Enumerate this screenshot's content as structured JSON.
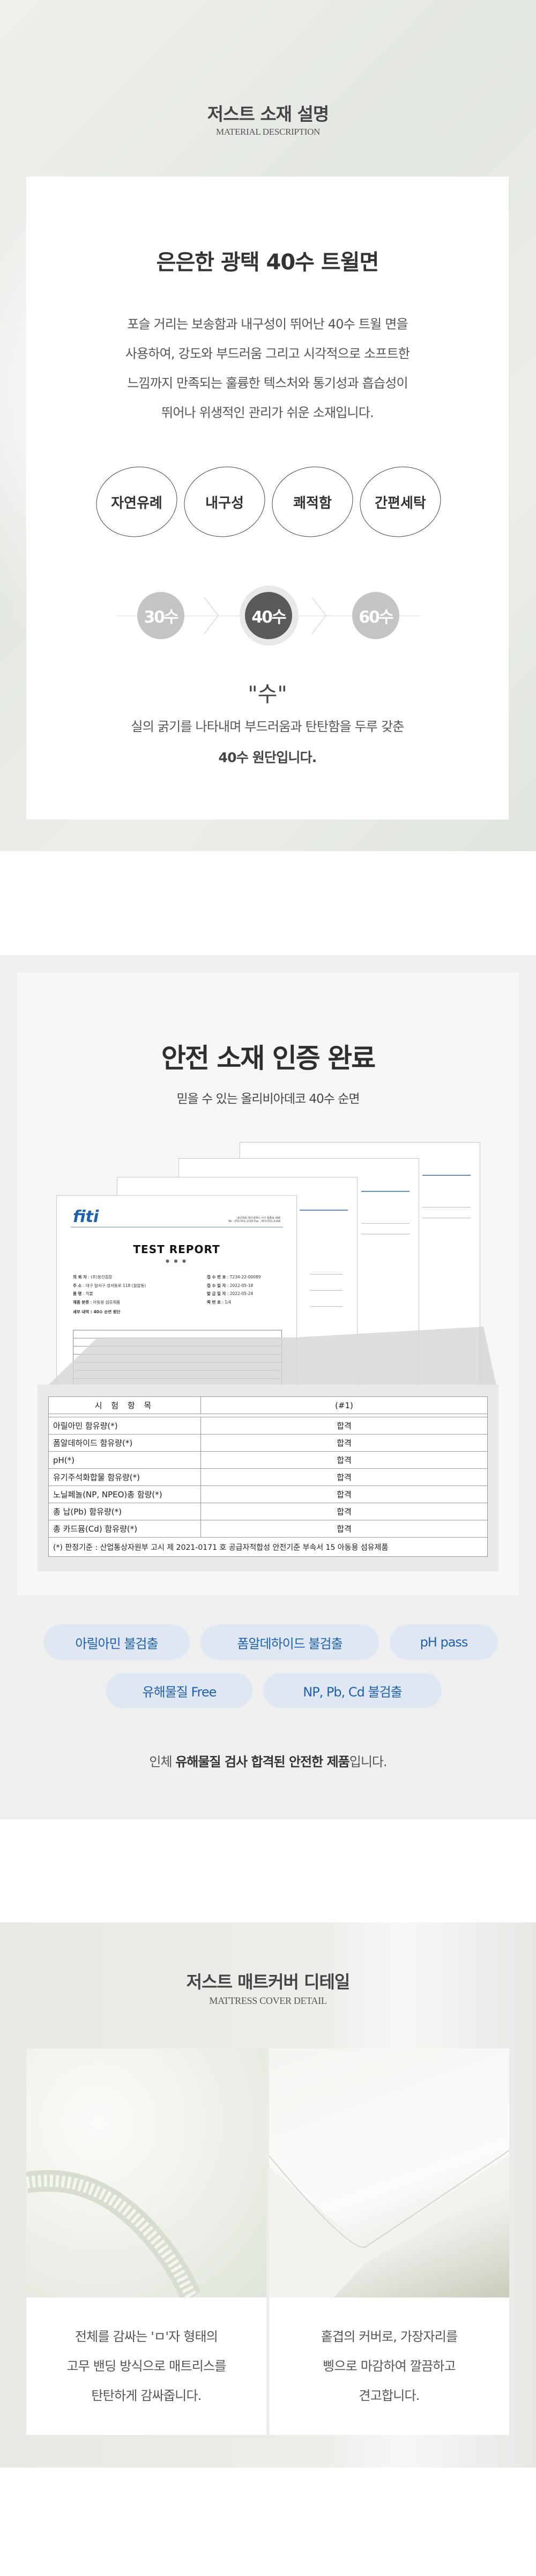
{
  "material": {
    "title": "저스트 소재 설명",
    "subtitle": "MATERIAL DESCRIPTION",
    "headline": "은은한 광택 40수 트윌면",
    "description": [
      "포슬 거리는 보송함과 내구성이 뛰어난 40수 트윌 면을",
      "사용하여, 강도와 부드러움 그리고 시각적으로 소프트한",
      "느낌까지 만족되는 훌륭한 텍스처와 통기성과 흡습성이",
      "뛰어나 위생적인 관리가 쉬운 소재입니다."
    ],
    "features": [
      "자연유례",
      "내구성",
      "쾌적함",
      "간편세탁"
    ],
    "counts": [
      "30수",
      "40수",
      "60수"
    ],
    "selected_count": "40수",
    "count_term": "\"수\"",
    "count_desc": "실의 굵기를 나타내며 부드러움과 탄탄함을 두루 갖춘",
    "count_desc_bold": "40수 원단입니다."
  },
  "certification": {
    "title": "안전 소재 인증 완료",
    "subtitle": "믿을 수 있는 올리비아데코 40수 순면",
    "report": {
      "logo": "fiti",
      "address": "(41758) 대구광역시 서구 염종로 498",
      "tel": "Tel : 053-551-2150   Fax : 053-551-2148",
      "heading": "TEST REPORT",
      "fields_left": [
        {
          "label": "의 뢰 자",
          "value": "(주)동진침장"
        },
        {
          "label": "주      소",
          "value": "대구 달서구 성서동로 118 (월암동)"
        },
        {
          "label": "품      명",
          "value": "직물"
        },
        {
          "label": "제품 분류",
          "value": "아동용 섬유제품"
        }
      ],
      "detail": {
        "label": "세부 내역",
        "value": "40수 순면 원단"
      },
      "fields_right": [
        {
          "label": "접 수 번 호",
          "value": "T234-22-00089"
        },
        {
          "label": "접 수 일 자",
          "value": "2022-05-18"
        },
        {
          "label": "발 급 일 자",
          "value": "2022-05-24"
        },
        {
          "label": "쪽  번  호",
          "value": "1/4"
        }
      ]
    },
    "table": {
      "headers": [
        "시 험 항 목",
        "(#1)"
      ],
      "rows": [
        [
          "아릴아민 함유량(*)",
          "합격"
        ],
        [
          "폼알데하이드 함유량(*)",
          "합격"
        ],
        [
          "pH(*)",
          "합격"
        ],
        [
          "유기주석화합물 함유량(*)",
          "합격"
        ],
        [
          "노닐페놀(NP, NPEO)총 함량(*)",
          "합격"
        ],
        [
          "총 납(Pb) 함유량(*)",
          "합격"
        ],
        [
          "총 카드뮴(Cd) 함유량(*)",
          "합격"
        ]
      ],
      "footnote": "(*) 판정기준 : 산업통상자원부 고시 제 2021-0171 호 공급자적합성 안전기준 부속서 15 아동용 섬유제품"
    },
    "badges": [
      "아릴아민 불검출",
      "폼알데하이드 불검출",
      "pH pass",
      "유해물질 Free",
      "NP, Pb, Cd 불검출"
    ],
    "summary": {
      "pre": "인체 ",
      "bold": "유해물질 검사 합격된 안전한 제품",
      "post": "입니다."
    },
    "accent": "#1f5fae"
  },
  "detail": {
    "title": "저스트 매트커버 디테일",
    "subtitle": "MATTRESS COVER DETAIL",
    "items": [
      {
        "lines": [
          "전체를 감싸는 'ㅁ'자 형태의",
          "고무 밴딩 방식으로 매트리스를",
          "탄탄하게 감싸줍니다."
        ]
      },
      {
        "lines": [
          "홑겹의 커버로, 가장자리를",
          "삥으로 마감하여 깔끔하고",
          "견고합니다."
        ]
      }
    ]
  }
}
